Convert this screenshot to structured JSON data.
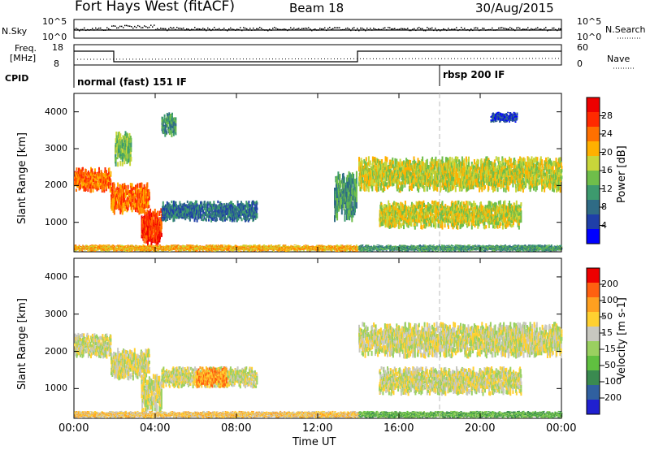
{
  "header": {
    "station": "Fort Hays West (fitACF)",
    "beam": "Beam 18",
    "date": "30/Aug/2015"
  },
  "strip_panels": {
    "nsky_label": "N.Sky",
    "nsky_ticks": [
      "10^5",
      "10^0"
    ],
    "nsearch_label": "N.Search",
    "nsearch_ticks": [
      "10^5",
      "10^0"
    ],
    "freq_label_1": "Freq.",
    "freq_label_2": "[MHz]",
    "freq_ticks": [
      "18",
      "8"
    ],
    "nave_label": "Nave",
    "nave_ticks": [
      "60",
      "0"
    ],
    "cpid_label": "CPID",
    "cpid_modes": [
      "normal (fast) 151 IF",
      "rbsp 200 IF"
    ]
  },
  "chart_data": [
    {
      "type": "heatmap",
      "panel": "power",
      "ylabel": "Slant Range [km]",
      "xlabel": "",
      "x_ticks": [
        "00:00",
        "04:00",
        "08:00",
        "12:00",
        "16:00",
        "20:00",
        "00:00"
      ],
      "y_ticks": [
        "1000",
        "2000",
        "3000",
        "4000"
      ],
      "xlim": [
        0,
        24
      ],
      "ylim": [
        200,
        4500
      ],
      "colorbar": {
        "label": "Power [dB]",
        "ticks": [
          "4",
          "8",
          "12",
          "16",
          "20",
          "24",
          "28"
        ],
        "colors": [
          "#0000ff",
          "#1f3fa8",
          "#2f6b85",
          "#3d9a6e",
          "#6fbe4a",
          "#c8d63a",
          "#ffb000",
          "#ff7000",
          "#ff2a00",
          "#ee0000"
        ]
      },
      "regions": [
        {
          "t0": 0.0,
          "t1": 1.8,
          "r0": 1800,
          "r1": 2500,
          "level": 7
        },
        {
          "t0": 1.8,
          "t1": 3.7,
          "r0": 1200,
          "r1": 2100,
          "level": 7
        },
        {
          "t0": 2.0,
          "t1": 2.8,
          "r0": 2500,
          "r1": 3500,
          "level": 4
        },
        {
          "t0": 3.3,
          "t1": 4.3,
          "r0": 300,
          "r1": 1400,
          "level": 8
        },
        {
          "t0": 4.3,
          "t1": 9.0,
          "r0": 1000,
          "r1": 1600,
          "level": 2
        },
        {
          "t0": 4.3,
          "t1": 5.0,
          "r0": 3300,
          "r1": 4000,
          "level": 3
        },
        {
          "t0": 0.0,
          "t1": 14.0,
          "r0": 200,
          "r1": 400,
          "level": 6
        },
        {
          "t0": 14.0,
          "t1": 24.0,
          "r0": 1800,
          "r1": 2800,
          "level": 5
        },
        {
          "t0": 15.0,
          "t1": 22.0,
          "r0": 800,
          "r1": 1600,
          "level": 5
        },
        {
          "t0": 14.0,
          "t1": 24.0,
          "r0": 200,
          "r1": 400,
          "level": 3
        },
        {
          "t0": 20.5,
          "t1": 21.8,
          "r0": 3700,
          "r1": 4000,
          "level": 1
        },
        {
          "t0": 12.8,
          "t1": 13.9,
          "r0": 1000,
          "r1": 2400,
          "level": 3
        }
      ]
    },
    {
      "type": "heatmap",
      "panel": "velocity",
      "ylabel": "Slant Range [km]",
      "xlabel": "Time UT",
      "x_ticks": [
        "00:00",
        "04:00",
        "08:00",
        "12:00",
        "16:00",
        "20:00",
        "00:00"
      ],
      "y_ticks": [
        "1000",
        "2000",
        "3000",
        "4000"
      ],
      "xlim": [
        0,
        24
      ],
      "ylim": [
        200,
        4500
      ],
      "colorbar": {
        "label": "Velocity [m s-1]",
        "ticks": [
          "200",
          "100",
          "50",
          "15",
          "-15",
          "-50",
          "-100",
          "-200"
        ],
        "colors": [
          "#2020d0",
          "#3060a0",
          "#3a8a50",
          "#60c040",
          "#9ad060",
          "#c8c8c0",
          "#ffd030",
          "#ffa020",
          "#ff6010",
          "#ee0000"
        ]
      },
      "regions": [
        {
          "t0": 0.0,
          "t1": 1.8,
          "r0": 1800,
          "r1": 2500,
          "level": 5
        },
        {
          "t0": 1.8,
          "t1": 3.7,
          "r0": 1200,
          "r1": 2100,
          "level": 5
        },
        {
          "t0": 3.3,
          "t1": 4.3,
          "r0": 300,
          "r1": 1400,
          "level": 5
        },
        {
          "t0": 4.3,
          "t1": 9.0,
          "r0": 1000,
          "r1": 1600,
          "level": 5
        },
        {
          "t0": 14.0,
          "t1": 24.0,
          "r0": 1800,
          "r1": 2800,
          "level": 5
        },
        {
          "t0": 15.0,
          "t1": 22.0,
          "r0": 800,
          "r1": 1600,
          "level": 5
        },
        {
          "t0": 0.0,
          "t1": 14.0,
          "r0": 200,
          "r1": 400,
          "level": 6
        },
        {
          "t0": 6.0,
          "t1": 7.5,
          "r0": 1000,
          "r1": 1600,
          "level": 7
        },
        {
          "t0": 14.0,
          "t1": 24.0,
          "r0": 200,
          "r1": 400,
          "level": 3
        }
      ]
    }
  ]
}
